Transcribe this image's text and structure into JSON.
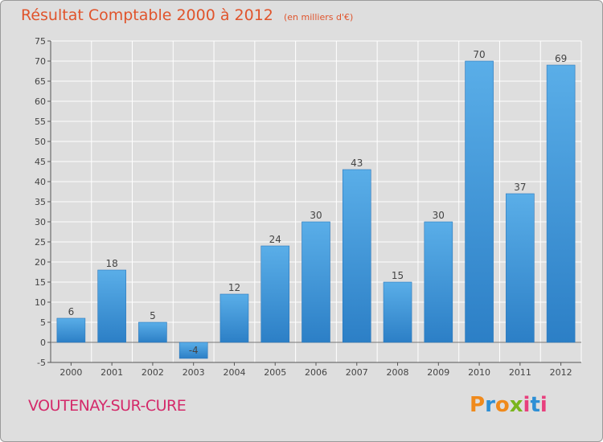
{
  "header": {
    "title": "Résultat Comptable 2000 à 2012",
    "subtitle": "(en milliers d'€)"
  },
  "footer": {
    "commune": "VOUTENAY-SUR-CURE",
    "logo_text": "Proxiti"
  },
  "colors": {
    "background": "#dedede",
    "bar": "#3a90d4",
    "bar_light": "#5aaee8",
    "title": "#e0542c",
    "commune": "#d42a6a",
    "grid": "#ffffff"
  },
  "chart_data": {
    "type": "bar",
    "title": "Résultat Comptable 2000 à 2012",
    "subtitle": "(en milliers d'€)",
    "categories": [
      "2000",
      "2001",
      "2002",
      "2003",
      "2004",
      "2005",
      "2006",
      "2007",
      "2008",
      "2009",
      "2010",
      "2011",
      "2012"
    ],
    "values": [
      6,
      18,
      5,
      -4,
      12,
      24,
      30,
      43,
      15,
      30,
      70,
      37,
      69
    ],
    "data_labels": [
      "6",
      "18",
      "5",
      "-4",
      "12",
      "24",
      "30",
      "43",
      "15",
      "30",
      "70",
      "37",
      "69"
    ],
    "ylim": [
      -5,
      75
    ],
    "yticks": [
      -5,
      0,
      5,
      10,
      15,
      20,
      25,
      30,
      35,
      40,
      45,
      50,
      55,
      60,
      65,
      70,
      75
    ],
    "ytick_labels": [
      "-5",
      "0",
      "5",
      "10",
      "15",
      "20",
      "25",
      "30",
      "35",
      "40",
      "45",
      "50",
      "55",
      "60",
      "65",
      "70",
      "75"
    ],
    "xlabel": "",
    "ylabel": "",
    "grid": true,
    "legend": "none"
  }
}
